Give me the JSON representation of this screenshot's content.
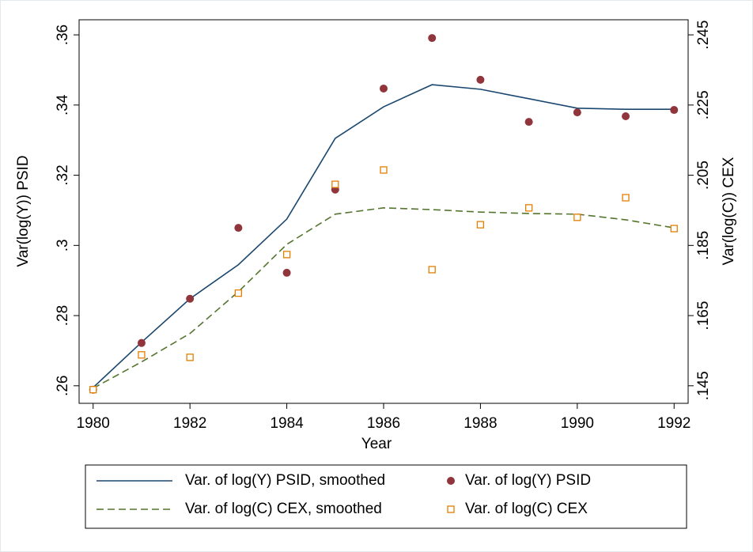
{
  "chart_data": {
    "type": "line",
    "x": [
      1980,
      1981,
      1982,
      1983,
      1984,
      1985,
      1986,
      1987,
      1988,
      1989,
      1990,
      1991,
      1992
    ],
    "x_label": "Year",
    "y_label": "Var(log(Y)) PSID",
    "y2_label": "Var(log(C)) CEX",
    "xlim": [
      1979.71,
      1992.29
    ],
    "xticks": [
      1980,
      1982,
      1984,
      1986,
      1988,
      1990,
      1992
    ],
    "ylim": [
      0.255,
      0.3643
    ],
    "yticks": [
      {
        "value": 0.26,
        "label": ".26"
      },
      {
        "value": 0.28,
        "label": ".28"
      },
      {
        "value": 0.3,
        "label": ".3"
      },
      {
        "value": 0.32,
        "label": ".32"
      },
      {
        "value": 0.34,
        "label": ".34"
      },
      {
        "value": 0.36,
        "label": ".36"
      }
    ],
    "y2lim": [
      0.14,
      0.2493
    ],
    "y2ticks": [
      {
        "value": 0.145,
        "label": ".145"
      },
      {
        "value": 0.165,
        "label": ".165"
      },
      {
        "value": 0.185,
        "label": ".185"
      },
      {
        "value": 0.205,
        "label": ".205"
      },
      {
        "value": 0.225,
        "label": ".225"
      },
      {
        "value": 0.245,
        "label": ".245"
      }
    ],
    "series": [
      {
        "name": "Var. of log(Y) PSID, smoothed",
        "color": "#1a476f",
        "kind": "line",
        "dash": false,
        "axis": "y",
        "values": [
          0.2595,
          0.2724,
          0.2848,
          0.2945,
          0.3075,
          0.3305,
          0.3395,
          0.3458,
          0.3445,
          0.3418,
          0.3391,
          0.3388,
          0.3388
        ]
      },
      {
        "name": "Var. of log(Y) PSID",
        "color": "#90353b",
        "kind": "scatter",
        "marker": "circle",
        "axis": "y",
        "values": [
          0.2589,
          0.2722,
          0.2848,
          0.305,
          0.2922,
          0.3159,
          0.3447,
          0.3591,
          0.3472,
          0.3352,
          0.3379,
          0.3368,
          0.3386
        ]
      },
      {
        "name": "Var. of log(C) CEX, smoothed",
        "color": "#55752f",
        "kind": "line",
        "dash": true,
        "axis": "y2",
        "values": [
          0.1443,
          0.1518,
          0.1599,
          0.1718,
          0.1853,
          0.1939,
          0.1957,
          0.1952,
          0.1945,
          0.1941,
          0.1939,
          0.1923,
          0.19
        ]
      },
      {
        "name": "Var. of log(C) CEX",
        "color": "#e37e00",
        "kind": "scatter",
        "marker": "square",
        "axis": "y2",
        "values": [
          0.1439,
          0.1538,
          0.1531,
          0.1714,
          0.1824,
          0.2024,
          0.2065,
          0.1781,
          0.1909,
          0.1957,
          0.193,
          0.1986,
          0.1898
        ]
      }
    ]
  }
}
